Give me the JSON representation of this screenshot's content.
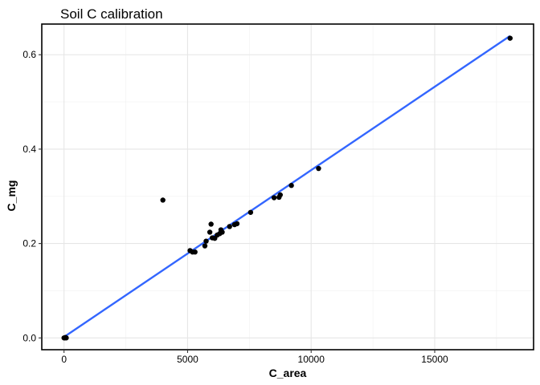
{
  "chart_data": {
    "type": "scatter",
    "title": "Soil C calibration",
    "xlabel": "C_area",
    "ylabel": "C_mg",
    "xlim": [
      -900,
      19000
    ],
    "ylim": [
      -0.025,
      0.665
    ],
    "x_ticks": [
      0,
      5000,
      10000,
      15000
    ],
    "x_tick_labels": [
      "0",
      "5000",
      "10000",
      "15000"
    ],
    "y_ticks": [
      0.0,
      0.2,
      0.4,
      0.6
    ],
    "y_tick_labels": [
      "0.0",
      "0.2",
      "0.4",
      "0.6"
    ],
    "grid": true,
    "points": [
      {
        "x": 0,
        "y": 0.0
      },
      {
        "x": 30,
        "y": 0.0
      },
      {
        "x": 60,
        "y": 0.001
      },
      {
        "x": 90,
        "y": 0.0
      },
      {
        "x": 4000,
        "y": 0.292
      },
      {
        "x": 5100,
        "y": 0.185
      },
      {
        "x": 5200,
        "y": 0.182
      },
      {
        "x": 5300,
        "y": 0.182
      },
      {
        "x": 5700,
        "y": 0.195
      },
      {
        "x": 5750,
        "y": 0.205
      },
      {
        "x": 5900,
        "y": 0.224
      },
      {
        "x": 5950,
        "y": 0.241
      },
      {
        "x": 6000,
        "y": 0.212
      },
      {
        "x": 6100,
        "y": 0.211
      },
      {
        "x": 6200,
        "y": 0.218
      },
      {
        "x": 6300,
        "y": 0.221
      },
      {
        "x": 6350,
        "y": 0.229
      },
      {
        "x": 6400,
        "y": 0.224
      },
      {
        "x": 6700,
        "y": 0.236
      },
      {
        "x": 6900,
        "y": 0.24
      },
      {
        "x": 7000,
        "y": 0.242
      },
      {
        "x": 7550,
        "y": 0.266
      },
      {
        "x": 8500,
        "y": 0.297
      },
      {
        "x": 8700,
        "y": 0.298
      },
      {
        "x": 8750,
        "y": 0.303
      },
      {
        "x": 9200,
        "y": 0.323
      },
      {
        "x": 10300,
        "y": 0.359
      },
      {
        "x": 18050,
        "y": 0.635
      }
    ],
    "fit_line": {
      "x": [
        0,
        18050
      ],
      "y": [
        0.002,
        0.64
      ],
      "color": "#3366FF"
    },
    "point_color": "#000000"
  }
}
